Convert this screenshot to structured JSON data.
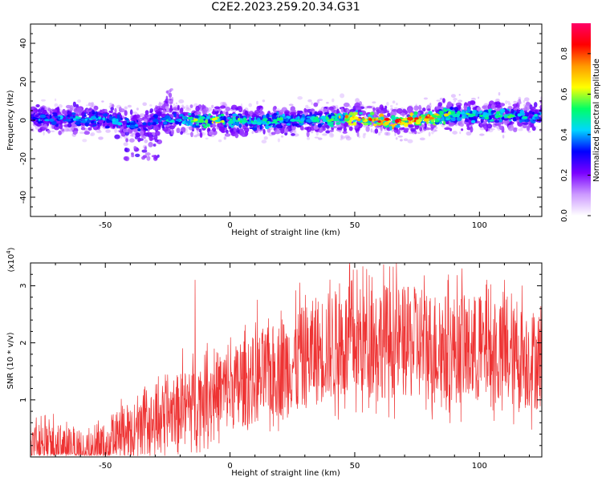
{
  "title": "C2E2.2023.259.20.34.G31",
  "chart_data": [
    {
      "type": "heatmap",
      "xlabel": "Height of straight line (km)",
      "ylabel": "Frequency (Hz)",
      "xlim": [
        -80,
        125
      ],
      "ylim": [
        -50,
        50
      ],
      "xticks": [
        -50,
        0,
        50,
        100
      ],
      "yticks": [
        -40,
        -20,
        0,
        20,
        40
      ],
      "colorbar": {
        "label": "Normalized spectral amplitude",
        "range": [
          0.0,
          0.95
        ],
        "ticks": [
          "0.0",
          "0.2",
          "0.4",
          "0.6",
          "0.8"
        ],
        "colors": [
          "#ffffff",
          "#cc99ff",
          "#7a00ff",
          "#0000ff",
          "#00d6ff",
          "#00ff66",
          "#ffff00",
          "#ff9900",
          "#ff0000",
          "#ff0066"
        ]
      },
      "ridge_points": [
        {
          "x": -78,
          "y": 1.5,
          "v": 0.35
        },
        {
          "x": -70,
          "y": 0.5,
          "v": 0.4
        },
        {
          "x": -60,
          "y": 1,
          "v": 0.45
        },
        {
          "x": -50,
          "y": 0.5,
          "v": 0.4
        },
        {
          "x": -40,
          "y": -2,
          "v": 0.4
        },
        {
          "x": -35,
          "y": -3,
          "v": 0.35
        },
        {
          "x": -30,
          "y": -1,
          "v": 0.4
        },
        {
          "x": -25,
          "y": 0.5,
          "v": 0.45
        },
        {
          "x": -20,
          "y": 0.5,
          "v": 0.45
        },
        {
          "x": -10,
          "y": 0,
          "v": 0.65
        },
        {
          "x": 0,
          "y": 0,
          "v": 0.55
        },
        {
          "x": 10,
          "y": -1,
          "v": 0.5
        },
        {
          "x": 20,
          "y": 0,
          "v": 0.5
        },
        {
          "x": 30,
          "y": 0.5,
          "v": 0.45
        },
        {
          "x": 40,
          "y": 0.5,
          "v": 0.55
        },
        {
          "x": 45,
          "y": 1.5,
          "v": 0.7
        },
        {
          "x": 55,
          "y": 1,
          "v": 0.75
        },
        {
          "x": 62,
          "y": -0.5,
          "v": 0.9
        },
        {
          "x": 70,
          "y": -0.5,
          "v": 0.75
        },
        {
          "x": 80,
          "y": 1.5,
          "v": 0.75
        },
        {
          "x": 90,
          "y": 3,
          "v": 0.55
        },
        {
          "x": 100,
          "y": 2,
          "v": 0.5
        },
        {
          "x": 110,
          "y": 3,
          "v": 0.55
        },
        {
          "x": 120,
          "y": 2,
          "v": 0.45
        }
      ]
    },
    {
      "type": "line",
      "color": "#ee3333",
      "xlabel": "Height of straight line (km)",
      "ylabel": "SNR (10 * v/v)",
      "yscale_label": "(x10",
      "yscale_exp": "4",
      "yscale_suffix": ")",
      "xlim": [
        -80,
        125
      ],
      "ylim": [
        0,
        3.4
      ],
      "xticks": [
        -50,
        0,
        50,
        100
      ],
      "yticks": [
        1,
        2,
        3
      ],
      "envelope": [
        {
          "x": -80,
          "y": 0.15
        },
        {
          "x": -70,
          "y": 0.2
        },
        {
          "x": -62,
          "y": 0.08
        },
        {
          "x": -55,
          "y": 0.15
        },
        {
          "x": -45,
          "y": 0.35
        },
        {
          "x": -35,
          "y": 0.5
        },
        {
          "x": -28,
          "y": 0.7
        },
        {
          "x": -20,
          "y": 0.85
        },
        {
          "x": -15,
          "y": 0.95
        },
        {
          "x": -10,
          "y": 1.1
        },
        {
          "x": 0,
          "y": 1.2
        },
        {
          "x": 10,
          "y": 1.35
        },
        {
          "x": 20,
          "y": 1.55
        },
        {
          "x": 30,
          "y": 1.75
        },
        {
          "x": 40,
          "y": 1.95
        },
        {
          "x": 50,
          "y": 2.0
        },
        {
          "x": 60,
          "y": 2.05
        },
        {
          "x": 70,
          "y": 2.0
        },
        {
          "x": 80,
          "y": 1.95
        },
        {
          "x": 90,
          "y": 1.9
        },
        {
          "x": 100,
          "y": 1.85
        },
        {
          "x": 110,
          "y": 1.75
        },
        {
          "x": 125,
          "y": 1.7
        }
      ],
      "spikes": [
        {
          "x": -14,
          "y": 3.1
        },
        {
          "x": -19,
          "y": 1.9
        },
        {
          "x": 11,
          "y": 2.75
        },
        {
          "x": 28,
          "y": 3.05
        },
        {
          "x": 48,
          "y": 3.4
        },
        {
          "x": 57,
          "y": 3.15
        },
        {
          "x": 62,
          "y": 3.0
        },
        {
          "x": 93,
          "y": 3.3
        },
        {
          "x": 103,
          "y": 3.1
        },
        {
          "x": 110,
          "y": 3.1
        },
        {
          "x": 117,
          "y": 3.0
        }
      ]
    }
  ]
}
